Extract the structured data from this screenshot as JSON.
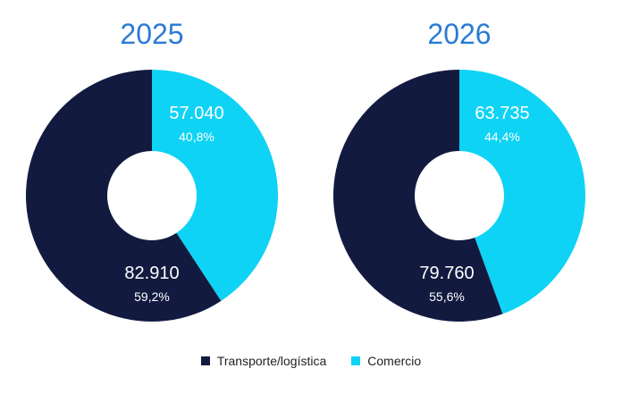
{
  "chart_data": [
    {
      "type": "pie",
      "title": "2025",
      "slices": [
        {
          "label": "Comercio",
          "value": 57040,
          "value_label": "57.040",
          "percent_label": "40,8%"
        },
        {
          "label": "Transporte/logística",
          "value": 82910,
          "value_label": "82.910",
          "percent_label": "59,2%"
        }
      ]
    },
    {
      "type": "pie",
      "title": "2026",
      "slices": [
        {
          "label": "Comercio",
          "value": 63735,
          "value_label": "63.735",
          "percent_label": "44,4%"
        },
        {
          "label": "Transporte/logística",
          "value": 79760,
          "value_label": "79.760",
          "percent_label": "55,6%"
        }
      ]
    }
  ],
  "legend": [
    {
      "label": "Transporte/logística",
      "color": "#121a40"
    },
    {
      "label": "Comercio",
      "color": "#0ed3f5"
    }
  ],
  "colors": {
    "Transporte/logística": "#121a40",
    "Comercio": "#0ed3f5",
    "title": "#2a7bd4"
  }
}
